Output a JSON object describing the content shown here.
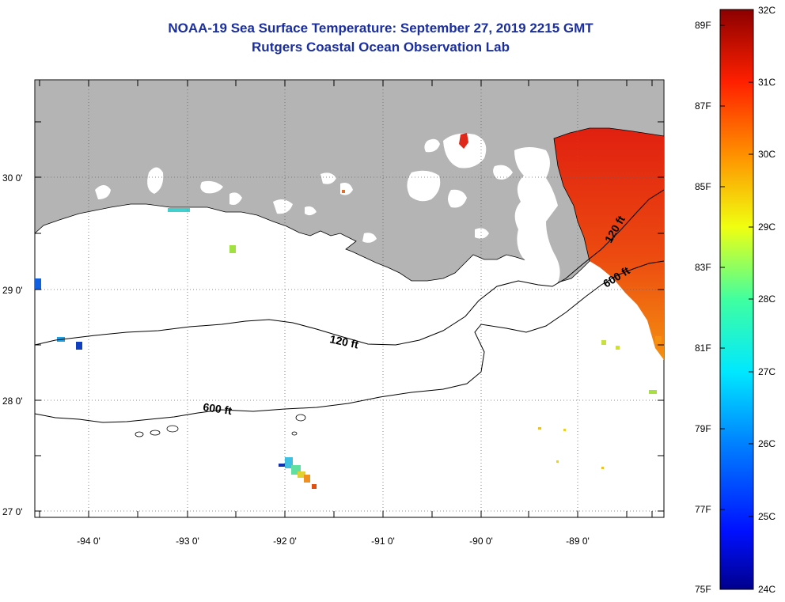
{
  "header": {
    "title": "NOAA-19 Sea Surface Temperature:  September 27, 2019 2215 GMT",
    "subtitle": "Rutgers Coastal Ocean Observation Lab"
  },
  "axes": {
    "lon_labels": [
      "-94 0'",
      "-93 0'",
      "-92 0'",
      "-91 0'",
      "-90 0'",
      "-89 0'"
    ],
    "lat_labels": [
      "30 0'",
      "29 0'",
      "28 0'",
      "27 0'"
    ]
  },
  "contours": {
    "c120_label": "120 ft",
    "c600_label": "600 ft"
  },
  "colorbar": {
    "fahrenheit": [
      "89F",
      "87F",
      "85F",
      "83F",
      "81F",
      "79F",
      "77F",
      "75F"
    ],
    "celsius": [
      "32C",
      "31C",
      "30C",
      "29C",
      "28C",
      "27C",
      "26C",
      "25C",
      "24C"
    ]
  },
  "colors": {
    "title": "#1a2ea0",
    "land": "#b4b4b4",
    "sst_warm": "#e8280a",
    "sst_orange": "#f57d0f"
  }
}
